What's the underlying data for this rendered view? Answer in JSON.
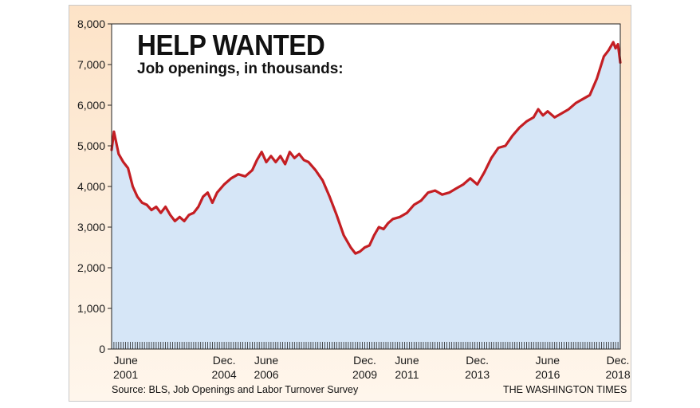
{
  "chart_data": {
    "type": "area",
    "title": "HELP WANTED",
    "subtitle": "Job openings, in thousands:",
    "ylim": [
      0,
      8000
    ],
    "yticks": [
      "8,000",
      "7,000",
      "6,000",
      "5,000",
      "4,000",
      "3,000",
      "2,000",
      "1,000",
      "0"
    ],
    "ytick_values": [
      8000,
      7000,
      6000,
      5000,
      4000,
      3000,
      2000,
      1000,
      0
    ],
    "xlim": [
      "2000-12",
      "2019-01"
    ],
    "xticks": [
      {
        "month": "2001-06",
        "line1": "June",
        "line2": "2001"
      },
      {
        "month": "2004-12",
        "line1": "Dec.",
        "line2": "2004"
      },
      {
        "month": "2006-06",
        "line1": "June",
        "line2": "2006"
      },
      {
        "month": "2009-12",
        "line1": "Dec.",
        "line2": "2009"
      },
      {
        "month": "2011-06",
        "line1": "June",
        "line2": "2011"
      },
      {
        "month": "2013-12",
        "line1": "Dec.",
        "line2": "2013"
      },
      {
        "month": "2016-06",
        "line1": "June",
        "line2": "2016"
      },
      {
        "month": "2018-12",
        "line1": "Dec.",
        "line2": "2018"
      }
    ],
    "series": [
      {
        "line_color": "#c41e23",
        "fill_color": "#d6e6f7",
        "points": [
          [
            "2000-12",
            4900
          ],
          [
            "2001-01",
            5350
          ],
          [
            "2001-03",
            4800
          ],
          [
            "2001-05",
            4600
          ],
          [
            "2001-07",
            4450
          ],
          [
            "2001-09",
            4000
          ],
          [
            "2001-11",
            3750
          ],
          [
            "2002-01",
            3600
          ],
          [
            "2002-03",
            3550
          ],
          [
            "2002-05",
            3420
          ],
          [
            "2002-07",
            3500
          ],
          [
            "2002-09",
            3350
          ],
          [
            "2002-11",
            3500
          ],
          [
            "2003-01",
            3300
          ],
          [
            "2003-03",
            3150
          ],
          [
            "2003-05",
            3250
          ],
          [
            "2003-07",
            3150
          ],
          [
            "2003-09",
            3300
          ],
          [
            "2003-11",
            3350
          ],
          [
            "2004-01",
            3500
          ],
          [
            "2004-03",
            3750
          ],
          [
            "2004-05",
            3850
          ],
          [
            "2004-07",
            3600
          ],
          [
            "2004-09",
            3850
          ],
          [
            "2004-12",
            4050
          ],
          [
            "2005-03",
            4200
          ],
          [
            "2005-06",
            4300
          ],
          [
            "2005-09",
            4250
          ],
          [
            "2005-12",
            4400
          ],
          [
            "2006-02",
            4650
          ],
          [
            "2006-04",
            4850
          ],
          [
            "2006-06",
            4600
          ],
          [
            "2006-08",
            4750
          ],
          [
            "2006-10",
            4600
          ],
          [
            "2006-12",
            4750
          ],
          [
            "2007-02",
            4550
          ],
          [
            "2007-04",
            4850
          ],
          [
            "2007-06",
            4700
          ],
          [
            "2007-08",
            4800
          ],
          [
            "2007-10",
            4650
          ],
          [
            "2007-12",
            4600
          ],
          [
            "2008-03",
            4400
          ],
          [
            "2008-06",
            4150
          ],
          [
            "2008-09",
            3750
          ],
          [
            "2008-12",
            3300
          ],
          [
            "2009-03",
            2800
          ],
          [
            "2009-06",
            2500
          ],
          [
            "2009-08",
            2350
          ],
          [
            "2009-10",
            2400
          ],
          [
            "2009-12",
            2500
          ],
          [
            "2010-02",
            2550
          ],
          [
            "2010-04",
            2800
          ],
          [
            "2010-06",
            3000
          ],
          [
            "2010-08",
            2950
          ],
          [
            "2010-10",
            3100
          ],
          [
            "2010-12",
            3200
          ],
          [
            "2011-03",
            3250
          ],
          [
            "2011-06",
            3350
          ],
          [
            "2011-09",
            3550
          ],
          [
            "2011-12",
            3650
          ],
          [
            "2012-03",
            3850
          ],
          [
            "2012-06",
            3900
          ],
          [
            "2012-09",
            3800
          ],
          [
            "2012-12",
            3850
          ],
          [
            "2013-03",
            3950
          ],
          [
            "2013-06",
            4050
          ],
          [
            "2013-09",
            4200
          ],
          [
            "2013-12",
            4050
          ],
          [
            "2014-03",
            4350
          ],
          [
            "2014-06",
            4700
          ],
          [
            "2014-09",
            4950
          ],
          [
            "2014-12",
            5000
          ],
          [
            "2015-03",
            5250
          ],
          [
            "2015-06",
            5450
          ],
          [
            "2015-09",
            5600
          ],
          [
            "2015-12",
            5700
          ],
          [
            "2016-02",
            5900
          ],
          [
            "2016-04",
            5750
          ],
          [
            "2016-06",
            5850
          ],
          [
            "2016-09",
            5700
          ],
          [
            "2016-12",
            5800
          ],
          [
            "2017-03",
            5900
          ],
          [
            "2017-06",
            6050
          ],
          [
            "2017-09",
            6150
          ],
          [
            "2017-12",
            6250
          ],
          [
            "2018-03",
            6650
          ],
          [
            "2018-06",
            7200
          ],
          [
            "2018-08",
            7350
          ],
          [
            "2018-10",
            7550
          ],
          [
            "2018-11",
            7400
          ],
          [
            "2018-12",
            7500
          ],
          [
            "2019-01",
            7050
          ]
        ]
      }
    ]
  },
  "source_note": "Source: BLS, Job Openings and Labor Turnover Survey",
  "credit_note": "THE WASHINGTON TIMES"
}
